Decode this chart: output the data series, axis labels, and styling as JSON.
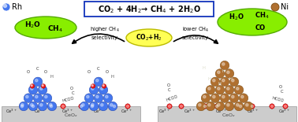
{
  "bg_color": "#ffffff",
  "rh_color": "#4477ee",
  "rh_ec": "#2244aa",
  "ni_color": "#b07030",
  "ni_ec": "#7a4a10",
  "o_color": "#ee1111",
  "o_ec": "#990000",
  "ce_bar_color": "#cccccc",
  "ce_bar_ec": "#999999",
  "green_color": "#88ee00",
  "green_ec": "#55aa00",
  "yellow_color": "#ffff55",
  "yellow_ec": "#bbbb00",
  "title_color": "#1133bb",
  "rh_label": "Rh",
  "ni_label": "Ni",
  "title": "CO$_2$ + 4H$_2$→ CH$_4$ + 2H$_2$O",
  "left_green_text1": "H$_2$O",
  "left_green_text2": "CH$_4$",
  "right_green_text1": "H$_2$O",
  "right_green_text2": "CH$_4$",
  "right_green_text3": "CO",
  "center_yellow_text": "CO$_2$+H$_2$",
  "left_label": "higher CH$_4$\nselectivity",
  "right_label": "lower CH$_4$\nselectivity",
  "ceo2_label": "CeO$_x$"
}
